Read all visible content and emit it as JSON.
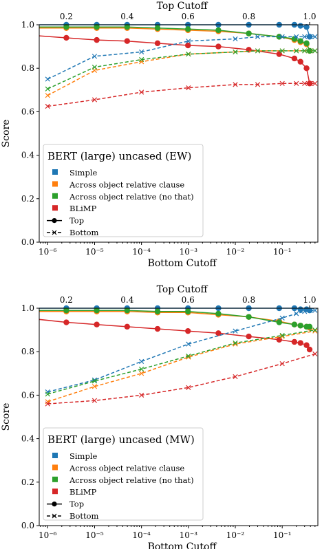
{
  "chart_data": [
    {
      "type": "line",
      "legend_title": "BERT (large) uncased (EW)",
      "ylabel": "Score",
      "xlabel_bottom": "Bottom Cutoff",
      "xlabel_top": "Top Cutoff",
      "ylim": [
        0.0,
        1.0
      ],
      "y_ticks": [
        0.0,
        0.2,
        0.4,
        0.6,
        0.8,
        1.0
      ],
      "y_tick_labels": [
        "0.0",
        "0.2",
        "0.4",
        "0.6",
        "0.8",
        "1.0"
      ],
      "x_bottom_scale": "log",
      "x_bottom_ticks": [
        1e-06,
        1e-05,
        0.0001,
        0.001,
        0.01,
        0.1
      ],
      "x_bottom_tick_labels": [
        "10⁻⁶",
        "10⁻⁵",
        "10⁻⁴",
        "10⁻³",
        "10⁻²",
        "10⁻¹"
      ],
      "x_top_ticks": [
        0.2,
        0.4,
        0.6,
        0.8,
        1.0
      ],
      "x_top_tick_labels": [
        "0.2",
        "0.4",
        "0.6",
        "0.8",
        "1.0"
      ],
      "legend": {
        "placement": "lower-left",
        "entries": [
          "Simple",
          "Across object relative clause",
          "Across object relative (no that)",
          "BLiMP",
          "Top",
          "Bottom"
        ]
      },
      "series": [
        {
          "name": "Simple",
          "color": "#1f77b4",
          "style": "top",
          "x": [
            0.0,
            0.1,
            0.2,
            0.3,
            0.4,
            0.5,
            0.6,
            0.7,
            0.8,
            0.9,
            0.95,
            0.97,
            0.99,
            1.0
          ],
          "y": [
            1.0,
            1.0,
            1.0,
            1.0,
            1.0,
            1.0,
            1.0,
            1.0,
            1.0,
            1.0,
            1.0,
            0.995,
            0.99,
            0.945
          ]
        },
        {
          "name": "Across object relative clause",
          "color": "#ff7f0e",
          "style": "top",
          "x": [
            0.0,
            0.1,
            0.2,
            0.3,
            0.4,
            0.5,
            0.6,
            0.7,
            0.8,
            0.9,
            0.95,
            0.97,
            0.99,
            1.0
          ],
          "y": [
            0.985,
            0.985,
            0.985,
            0.985,
            0.985,
            0.98,
            0.975,
            0.97,
            0.96,
            0.945,
            0.93,
            0.92,
            0.91,
            0.88
          ]
        },
        {
          "name": "Across object relative (no that)",
          "color": "#2ca02c",
          "style": "top",
          "x": [
            0.0,
            0.1,
            0.2,
            0.3,
            0.4,
            0.5,
            0.6,
            0.7,
            0.8,
            0.9,
            0.95,
            0.97,
            0.99,
            1.0
          ],
          "y": [
            0.99,
            0.99,
            0.99,
            0.99,
            0.99,
            0.985,
            0.98,
            0.975,
            0.96,
            0.945,
            0.935,
            0.925,
            0.915,
            0.88
          ]
        },
        {
          "name": "BLiMP",
          "color": "#d62728",
          "style": "top",
          "x": [
            0.0,
            0.1,
            0.2,
            0.3,
            0.4,
            0.5,
            0.6,
            0.7,
            0.8,
            0.9,
            0.95,
            0.97,
            0.99,
            1.0
          ],
          "y": [
            0.955,
            0.95,
            0.94,
            0.93,
            0.925,
            0.915,
            0.905,
            0.9,
            0.885,
            0.865,
            0.845,
            0.83,
            0.8,
            0.73
          ]
        },
        {
          "name": "Simple",
          "color": "#1f77b4",
          "style": "bottom",
          "x": [
            1e-06,
            1e-05,
            0.0001,
            0.001,
            0.01,
            0.03,
            0.1,
            0.2,
            0.3,
            0.4,
            0.5
          ],
          "y": [
            0.75,
            0.855,
            0.875,
            0.925,
            0.935,
            0.945,
            0.945,
            0.945,
            0.945,
            0.945,
            0.945
          ]
        },
        {
          "name": "Across object relative clause",
          "color": "#ff7f0e",
          "style": "bottom",
          "x": [
            1e-06,
            1e-05,
            0.0001,
            0.001,
            0.01,
            0.03,
            0.1,
            0.2,
            0.3,
            0.4,
            0.5
          ],
          "y": [
            0.675,
            0.79,
            0.83,
            0.865,
            0.875,
            0.88,
            0.88,
            0.88,
            0.88,
            0.88,
            0.88
          ]
        },
        {
          "name": "Across object relative (no that)",
          "color": "#2ca02c",
          "style": "bottom",
          "x": [
            1e-06,
            1e-05,
            0.0001,
            0.001,
            0.01,
            0.03,
            0.1,
            0.2,
            0.3,
            0.4,
            0.5
          ],
          "y": [
            0.705,
            0.805,
            0.84,
            0.865,
            0.875,
            0.88,
            0.88,
            0.88,
            0.88,
            0.88,
            0.88
          ]
        },
        {
          "name": "BLiMP",
          "color": "#d62728",
          "style": "bottom",
          "x": [
            1e-06,
            1e-05,
            0.0001,
            0.001,
            0.01,
            0.03,
            0.1,
            0.2,
            0.3,
            0.4,
            0.5
          ],
          "y": [
            0.625,
            0.655,
            0.69,
            0.71,
            0.725,
            0.725,
            0.73,
            0.73,
            0.73,
            0.73,
            0.73
          ]
        }
      ]
    },
    {
      "type": "line",
      "legend_title": "BERT (large) uncased (MW)",
      "ylabel": "Score",
      "xlabel_bottom": "Bottom Cutoff",
      "xlabel_top": "Top Cutoff",
      "ylim": [
        0.0,
        1.0
      ],
      "y_ticks": [
        0.0,
        0.2,
        0.4,
        0.6,
        0.8,
        1.0
      ],
      "y_tick_labels": [
        "0.0",
        "0.2",
        "0.4",
        "0.6",
        "0.8",
        "1.0"
      ],
      "x_bottom_scale": "log",
      "x_bottom_ticks": [
        1e-06,
        1e-05,
        0.0001,
        0.001,
        0.01,
        0.1
      ],
      "x_bottom_tick_labels": [
        "10⁻⁶",
        "10⁻⁵",
        "10⁻⁴",
        "10⁻³",
        "10⁻²",
        "10⁻¹"
      ],
      "x_top_ticks": [
        0.2,
        0.4,
        0.6,
        0.8,
        1.0
      ],
      "x_top_tick_labels": [
        "0.2",
        "0.4",
        "0.6",
        "0.8",
        "1.0"
      ],
      "legend": {
        "placement": "lower-left",
        "entries": [
          "Simple",
          "Across object relative clause",
          "Across object relative (no that)",
          "BLiMP",
          "Top",
          "Bottom"
        ]
      },
      "series": [
        {
          "name": "Simple",
          "color": "#1f77b4",
          "style": "top",
          "x": [
            0.0,
            0.1,
            0.2,
            0.3,
            0.4,
            0.5,
            0.6,
            0.7,
            0.8,
            0.9,
            0.95,
            0.97,
            0.99,
            1.0
          ],
          "y": [
            1.0,
            1.0,
            1.0,
            1.0,
            1.0,
            1.0,
            1.0,
            1.0,
            1.0,
            1.0,
            1.0,
            0.995,
            0.995,
            0.99
          ]
        },
        {
          "name": "Across object relative clause",
          "color": "#ff7f0e",
          "style": "top",
          "x": [
            0.0,
            0.1,
            0.2,
            0.3,
            0.4,
            0.5,
            0.6,
            0.7,
            0.8,
            0.9,
            0.95,
            0.97,
            0.99,
            1.0
          ],
          "y": [
            0.985,
            0.985,
            0.985,
            0.985,
            0.985,
            0.98,
            0.98,
            0.97,
            0.96,
            0.94,
            0.925,
            0.92,
            0.915,
            0.91
          ]
        },
        {
          "name": "Across object relative (no that)",
          "color": "#2ca02c",
          "style": "top",
          "x": [
            0.0,
            0.1,
            0.2,
            0.3,
            0.4,
            0.5,
            0.6,
            0.7,
            0.8,
            0.9,
            0.95,
            0.97,
            0.99,
            1.0
          ],
          "y": [
            0.99,
            0.99,
            0.99,
            0.99,
            0.99,
            0.985,
            0.985,
            0.975,
            0.96,
            0.935,
            0.925,
            0.92,
            0.915,
            0.915
          ]
        },
        {
          "name": "BLiMP",
          "color": "#d62728",
          "style": "top",
          "x": [
            0.0,
            0.1,
            0.2,
            0.3,
            0.4,
            0.5,
            0.6,
            0.7,
            0.8,
            0.9,
            0.95,
            0.97,
            0.99,
            1.0
          ],
          "y": [
            0.955,
            0.95,
            0.935,
            0.925,
            0.915,
            0.905,
            0.895,
            0.885,
            0.87,
            0.855,
            0.845,
            0.84,
            0.83,
            0.81
          ]
        },
        {
          "name": "Simple",
          "color": "#1f77b4",
          "style": "bottom",
          "x": [
            1e-06,
            1e-05,
            0.0001,
            0.001,
            0.01,
            0.1,
            0.2,
            0.3,
            0.4,
            0.5
          ],
          "y": [
            0.615,
            0.67,
            0.755,
            0.835,
            0.895,
            0.955,
            0.975,
            0.985,
            0.99,
            0.99
          ]
        },
        {
          "name": "Across object relative clause",
          "color": "#ff7f0e",
          "style": "bottom",
          "x": [
            1e-06,
            1e-05,
            0.0001,
            0.001,
            0.01,
            0.1,
            0.5
          ],
          "y": [
            0.57,
            0.64,
            0.7,
            0.775,
            0.835,
            0.87,
            0.895
          ]
        },
        {
          "name": "Across object relative (no that)",
          "color": "#2ca02c",
          "style": "bottom",
          "x": [
            1e-06,
            1e-05,
            0.0001,
            0.001,
            0.01,
            0.1,
            0.5
          ],
          "y": [
            0.605,
            0.665,
            0.72,
            0.78,
            0.84,
            0.875,
            0.9
          ]
        },
        {
          "name": "BLiMP",
          "color": "#d62728",
          "style": "bottom",
          "x": [
            1e-06,
            1e-05,
            0.0001,
            0.001,
            0.01,
            0.1,
            0.5
          ],
          "y": [
            0.56,
            0.575,
            0.6,
            0.635,
            0.685,
            0.745,
            0.79
          ]
        }
      ]
    }
  ]
}
